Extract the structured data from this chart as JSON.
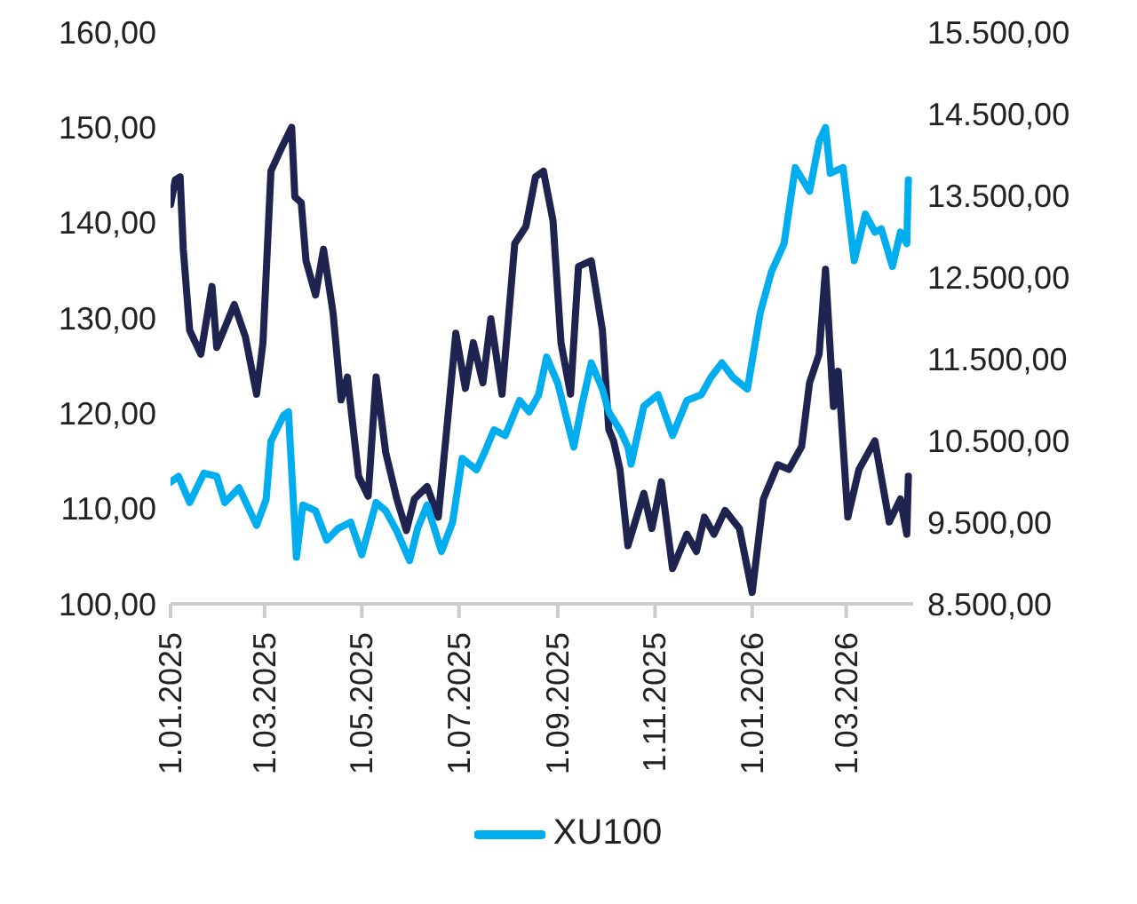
{
  "chart_data": {
    "type": "line",
    "legend": "bottom",
    "grid": false,
    "marker": "none",
    "line_style": "solid",
    "xlim": [
      "2025-01-01",
      "2026-04-12"
    ],
    "xticks": [
      {
        "value": "2025-01-01",
        "label": "1.01.2025"
      },
      {
        "value": "2025-03-01",
        "label": "1.03.2025"
      },
      {
        "value": "2025-05-01",
        "label": "1.05.2025"
      },
      {
        "value": "2025-07-01",
        "label": "1.07.2025"
      },
      {
        "value": "2025-09-01",
        "label": "1.09.2025"
      },
      {
        "value": "2025-11-01",
        "label": "1.11.2025"
      },
      {
        "value": "2026-01-01",
        "label": "1.01.2026"
      },
      {
        "value": "2026-03-01",
        "label": "1.03.2026"
      }
    ],
    "ylim": [
      100,
      160
    ],
    "yticks": [
      {
        "value": 100,
        "label": "100,00"
      },
      {
        "value": 110,
        "label": "110,00"
      },
      {
        "value": 120,
        "label": "120,00"
      },
      {
        "value": 130,
        "label": "130,00"
      },
      {
        "value": 140,
        "label": "140,00"
      },
      {
        "value": 150,
        "label": "150,00"
      },
      {
        "value": 160,
        "label": "160,00"
      }
    ],
    "y2lim": [
      8500,
      15500
    ],
    "y2ticks": [
      {
        "value": 8500,
        "label": "8.500,00"
      },
      {
        "value": 9500,
        "label": "9.500,00"
      },
      {
        "value": 10500,
        "label": "10.500,00"
      },
      {
        "value": 11500,
        "label": "11.500,00"
      },
      {
        "value": 12500,
        "label": "12.500,00"
      },
      {
        "value": 13500,
        "label": "13.500,00"
      },
      {
        "value": 14500,
        "label": "14.500,00"
      },
      {
        "value": 15500,
        "label": "15.500,00"
      }
    ],
    "series": [
      {
        "color": "#1f2350",
        "x": [
          "2025-01-01",
          "2025-01-04",
          "2025-01-07",
          "2025-01-09",
          "2025-01-13",
          "2025-01-20",
          "2025-01-27",
          "2025-01-30",
          "2025-02-10",
          "2025-02-17",
          "2025-02-24",
          "2025-02-28",
          "2025-03-05",
          "2025-03-11",
          "2025-03-18",
          "2025-03-20",
          "2025-03-24",
          "2025-03-27",
          "2025-04-02",
          "2025-04-07",
          "2025-04-13",
          "2025-04-18",
          "2025-04-22",
          "2025-04-29",
          "2025-05-05",
          "2025-05-10",
          "2025-05-16",
          "2025-05-23",
          "2025-05-29",
          "2025-06-03",
          "2025-06-11",
          "2025-06-18",
          "2025-06-24",
          "2025-06-29",
          "2025-07-05",
          "2025-07-10",
          "2025-07-16",
          "2025-07-21",
          "2025-07-28",
          "2025-08-05",
          "2025-08-12",
          "2025-08-18",
          "2025-08-23",
          "2025-08-29",
          "2025-09-03",
          "2025-09-09",
          "2025-09-14",
          "2025-09-22",
          "2025-09-29",
          "2025-10-03",
          "2025-10-06",
          "2025-10-10",
          "2025-10-15",
          "2025-10-25",
          "2025-10-30",
          "2025-11-05",
          "2025-11-12",
          "2025-11-21",
          "2025-11-27",
          "2025-12-02",
          "2025-12-08",
          "2025-12-15",
          "2025-12-24",
          "2026-01-01",
          "2026-01-08",
          "2026-01-17",
          "2026-01-24",
          "2026-02-01",
          "2026-02-06",
          "2026-02-12",
          "2026-02-16",
          "2026-02-21",
          "2026-02-24",
          "2026-03-02",
          "2026-03-09",
          "2026-03-19",
          "2026-03-28",
          "2026-04-04",
          "2026-04-08",
          "2026-04-09"
        ],
        "values": [
          141.9,
          144.5,
          144.8,
          137.2,
          128.7,
          126.2,
          133.3,
          126.9,
          131.4,
          128,
          122,
          127.4,
          145.4,
          147.6,
          150,
          142.7,
          142.1,
          136,
          132.4,
          137.2,
          130.5,
          121.4,
          123.8,
          113.4,
          111.3,
          123.8,
          115.9,
          111,
          107.7,
          111,
          112.3,
          109.1,
          119.5,
          128.4,
          122.6,
          127.4,
          123.2,
          129.9,
          122,
          137.8,
          139.6,
          144.8,
          145.4,
          140.2,
          127.4,
          122,
          135.4,
          136,
          128.7,
          118.3,
          117.1,
          114.1,
          106.1,
          111.6,
          107.9,
          112.8,
          103.7,
          107.3,
          105.5,
          109.1,
          107.3,
          109.8,
          107.9,
          101.2,
          111,
          114.6,
          114.1,
          116.5,
          123.2,
          126.2,
          135.1,
          120.7,
          124.4,
          109.1,
          114.1,
          117.1,
          108.6,
          111,
          107.3,
          113.4
        ]
      },
      {
        "name": "XU100",
        "color": "#00aeef",
        "axis": "y2",
        "x": [
          "2025-01-01",
          "2025-01-06",
          "2025-01-13",
          "2025-01-22",
          "2025-01-30",
          "2025-02-04",
          "2025-02-13",
          "2025-02-24",
          "2025-03-02",
          "2025-03-05",
          "2025-03-13",
          "2025-03-16",
          "2025-03-21",
          "2025-03-25",
          "2025-04-02",
          "2025-04-09",
          "2025-04-16",
          "2025-04-24",
          "2025-05-01",
          "2025-05-10",
          "2025-05-16",
          "2025-05-23",
          "2025-05-31",
          "2025-06-05",
          "2025-06-11",
          "2025-06-20",
          "2025-06-27",
          "2025-07-03",
          "2025-07-12",
          "2025-07-17",
          "2025-07-23",
          "2025-07-30",
          "2025-08-08",
          "2025-08-14",
          "2025-08-20",
          "2025-08-25",
          "2025-09-01",
          "2025-09-11",
          "2025-09-16",
          "2025-09-22",
          "2025-09-29",
          "2025-10-03",
          "2025-10-10",
          "2025-10-15",
          "2025-10-17",
          "2025-10-25",
          "2025-11-03",
          "2025-11-12",
          "2025-11-21",
          "2025-11-30",
          "2025-12-06",
          "2025-12-13",
          "2025-12-20",
          "2025-12-29",
          "2026-01-06",
          "2026-01-13",
          "2026-01-21",
          "2026-01-28",
          "2026-02-06",
          "2026-02-12",
          "2026-02-16",
          "2026-02-19",
          "2026-02-27",
          "2026-03-06",
          "2026-03-13",
          "2026-03-19",
          "2026-03-23",
          "2026-03-30",
          "2026-04-04",
          "2026-04-08",
          "2026-04-09"
        ],
        "values": [
          9990,
          10060,
          9740,
          10100,
          10060,
          9740,
          9920,
          9460,
          9780,
          10490,
          10810,
          10850,
          9070,
          9710,
          9640,
          9280,
          9420,
          9500,
          9100,
          9740,
          9640,
          9390,
          9030,
          9420,
          9710,
          9140,
          9500,
          10280,
          10140,
          10350,
          10630,
          10560,
          10990,
          10850,
          11060,
          11520,
          11200,
          10420,
          10920,
          11450,
          11130,
          10850,
          10630,
          10420,
          10210,
          10920,
          11060,
          10560,
          10990,
          11060,
          11270,
          11450,
          11270,
          11130,
          12060,
          12560,
          12910,
          13840,
          13550,
          14160,
          14330,
          13770,
          13840,
          12700,
          13270,
          13050,
          13090,
          12630,
          13050,
          12910,
          13690
        ]
      }
    ]
  }
}
